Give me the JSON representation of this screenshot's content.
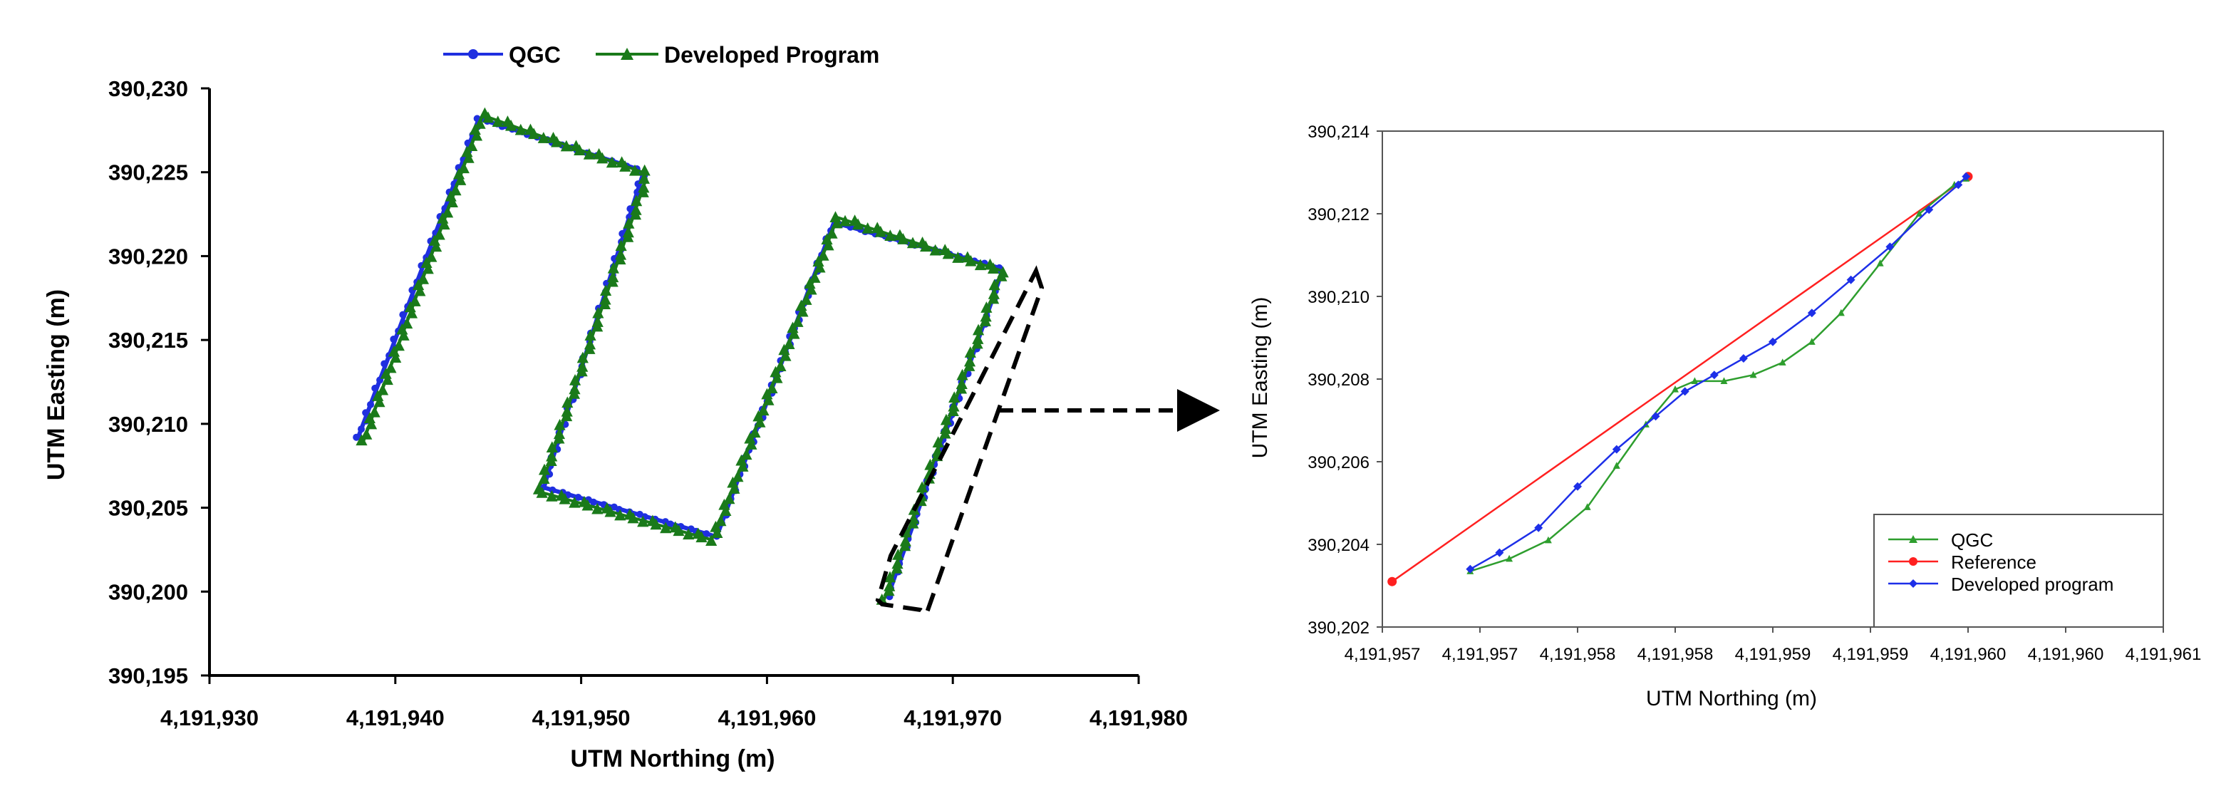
{
  "chart_data": [
    {
      "type": "scatter",
      "title": "",
      "xlabel": "UTM Northing (m)",
      "ylabel": "UTM Easting (m)",
      "xlim": [
        4191930,
        4191980
      ],
      "ylim": [
        390195,
        390230
      ],
      "x_ticks": [
        "4,191,930",
        "4,191,940",
        "4,191,950",
        "4,191,960",
        "4,191,970",
        "4,191,980"
      ],
      "y_ticks": [
        "390,195",
        "390,200",
        "390,205",
        "390,210",
        "390,215",
        "390,220",
        "390,225",
        "390,230"
      ],
      "legend_position": "top-center",
      "series": [
        {
          "name": "QGC",
          "color": "#1f2fe0",
          "marker": "circle",
          "x": [
            4191938.0,
            4191944.5,
            4191953.0,
            4191953.3,
            4191948.2,
            4191948.0,
            4191957.2,
            4191957.4,
            4191963.6,
            4191972.5,
            4191972.6,
            4191966.5
          ],
          "y": [
            390209.2,
            390228.2,
            390225.2,
            390224.8,
            390207.0,
            390206.2,
            390203.3,
            390203.6,
            390222.0,
            390219.3,
            390218.9,
            390199.7
          ]
        },
        {
          "name": "Developed Program",
          "color": "#1a7a1a",
          "marker": "triangle",
          "x": [
            4191938.3,
            4191944.7,
            4191953.3,
            4191953.5,
            4191948.0,
            4191947.6,
            4191957.0,
            4191957.2,
            4191963.8,
            4191972.7,
            4191972.5,
            4191966.3
          ],
          "y": [
            390209.0,
            390228.4,
            390225.0,
            390224.6,
            390206.8,
            390206.0,
            390203.1,
            390203.4,
            390222.3,
            390219.1,
            390218.7,
            390199.5
          ]
        }
      ],
      "annotation": "dashed box around final segment with arrow to zoomed chart"
    },
    {
      "type": "line",
      "title": "",
      "xlabel": "UTM Northing (m)",
      "ylabel": "UTM Easting (m)",
      "xlim": [
        4191957.0,
        4191961.0
      ],
      "ylim": [
        390202,
        390214
      ],
      "x_ticks": [
        "4,191,957",
        "4,191,957",
        "4,191,958",
        "4,191,958",
        "4,191,959",
        "4,191,959",
        "4,191,960",
        "4,191,960",
        "4,191,961"
      ],
      "y_ticks": [
        "390,202",
        "390,204",
        "390,206",
        "390,208",
        "390,210",
        "390,212",
        "390,214"
      ],
      "legend_position": "bottom-right",
      "series": [
        {
          "name": "QGC",
          "color": "#2e9e2e",
          "marker": "triangle",
          "x": [
            4191957.45,
            4191957.65,
            4191957.85,
            4191958.05,
            4191958.2,
            4191958.35,
            4191958.5,
            4191958.6,
            4191958.75,
            4191958.9,
            4191959.05,
            4191959.2,
            4191959.35,
            4191959.55,
            4191959.75,
            4191959.93,
            4191959.99
          ],
          "y": [
            390203.35,
            390203.65,
            390204.1,
            390204.9,
            390205.9,
            390206.9,
            390207.75,
            390207.95,
            390207.95,
            390208.1,
            390208.4,
            390208.9,
            390209.6,
            390210.8,
            390212.0,
            390212.7,
            390212.85
          ]
        },
        {
          "name": "Reference",
          "color": "#ff2020",
          "marker": "circle",
          "x": [
            4191957.05,
            4191960.0
          ],
          "y": [
            390203.1,
            390212.9
          ]
        },
        {
          "name": "Developed program",
          "color": "#1d2fe8",
          "marker": "diamond",
          "x": [
            4191957.45,
            4191957.6,
            4191957.8,
            4191958.0,
            4191958.2,
            4191958.4,
            4191958.55,
            4191958.7,
            4191958.85,
            4191959.0,
            4191959.2,
            4191959.4,
            4191959.6,
            4191959.8,
            4191959.95,
            4191959.99
          ],
          "y": [
            390203.4,
            390203.8,
            390204.4,
            390205.4,
            390206.3,
            390207.1,
            390207.7,
            390208.1,
            390208.5,
            390208.9,
            390209.6,
            390210.4,
            390211.2,
            390212.1,
            390212.7,
            390212.9
          ]
        }
      ]
    }
  ]
}
